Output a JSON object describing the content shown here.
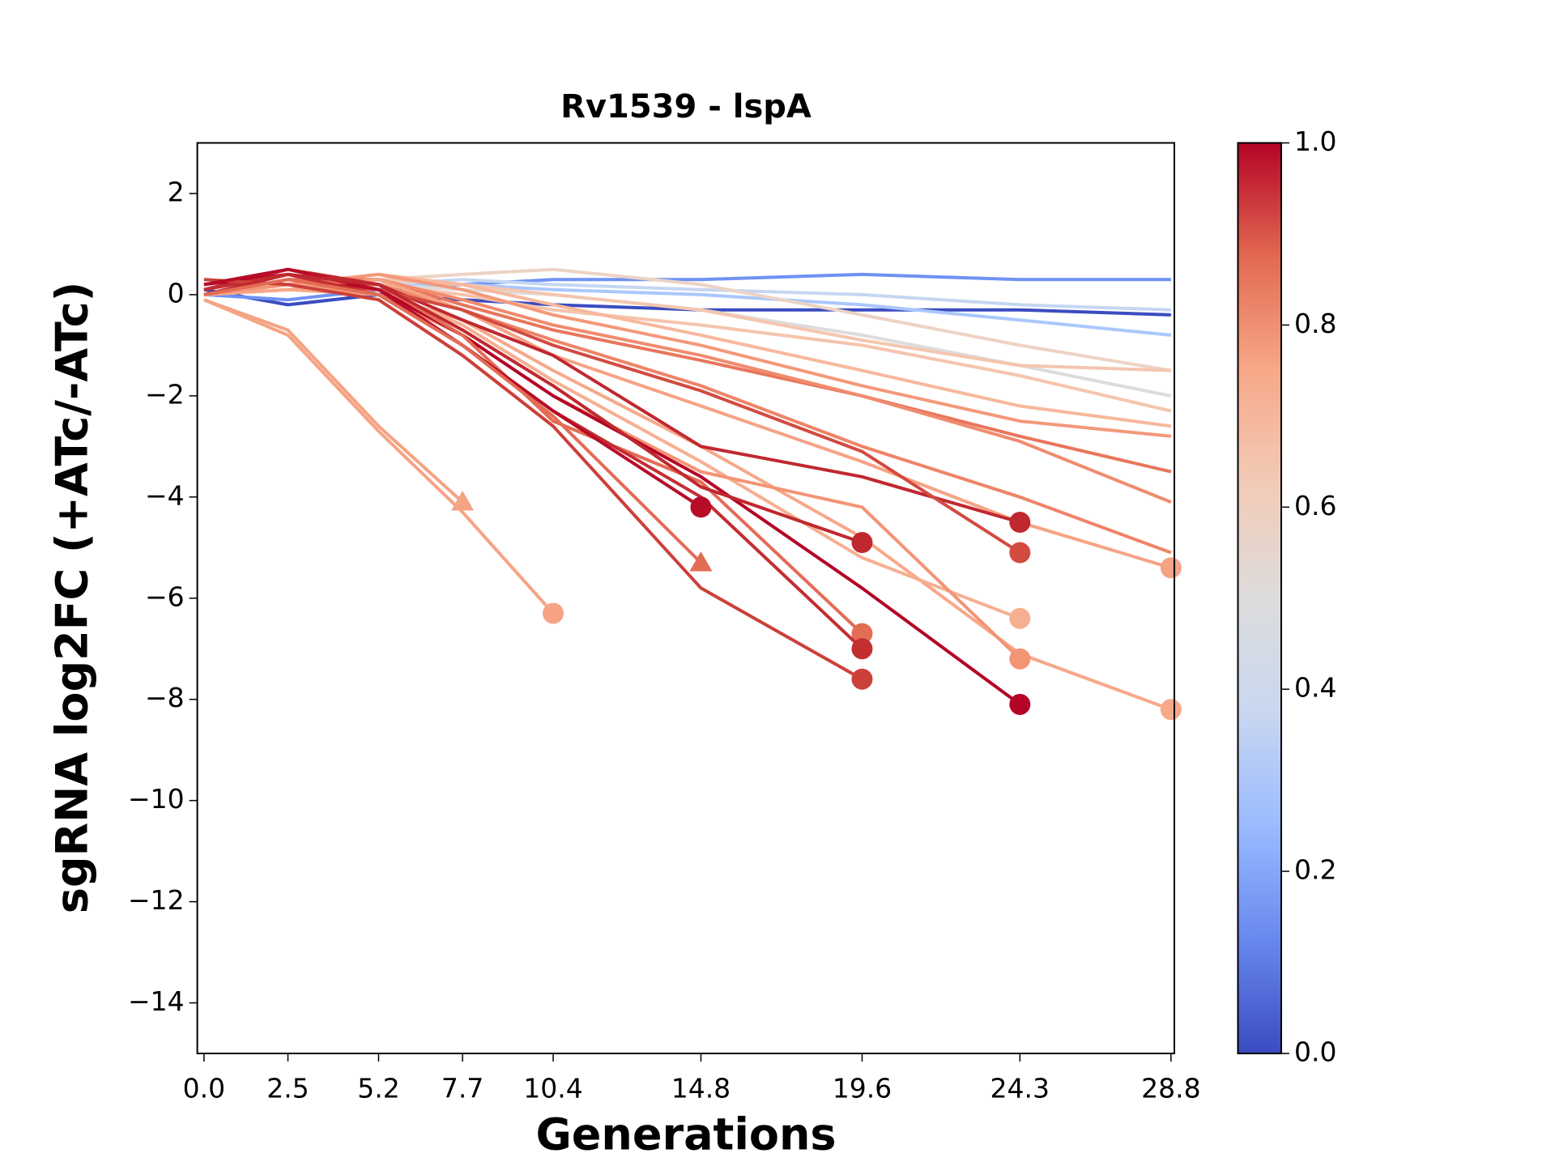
{
  "chart_data": {
    "type": "line",
    "title": "Rv1539 - lspA",
    "x_label": "Generations",
    "y_label": "sgRNA log2FC (+ATc/-ATc)",
    "x": [
      0,
      2.5,
      5.2,
      7.7,
      10.4,
      14.8,
      19.6,
      24.3,
      28.8
    ],
    "xlim": [
      -0.2,
      28.9
    ],
    "xticks": [
      {
        "value": 0,
        "label": "0.0"
      },
      2.5,
      5.2,
      7.7,
      10.4,
      14.8,
      19.6,
      24.3,
      28.8
    ],
    "ylim": [
      -15,
      3
    ],
    "yticks": [
      2,
      0,
      {
        "value": -2,
        "label": "−2"
      },
      {
        "value": -4,
        "label": "−4"
      },
      {
        "value": -6,
        "label": "−6"
      },
      {
        "value": -8,
        "label": "−8"
      },
      {
        "value": -10,
        "label": "−10"
      },
      {
        "value": -12,
        "label": "−12"
      },
      {
        "value": -14,
        "label": "−14"
      }
    ],
    "series": [
      {
        "color": "#3b4cc0",
        "values": [
          0.1,
          -0.2,
          0,
          -0.1,
          -0.2,
          -0.3,
          -0.3,
          -0.3,
          -0.4
        ]
      },
      {
        "color": "#6f92f3",
        "values": [
          0,
          -0.1,
          0.1,
          0.2,
          0.3,
          0.3,
          0.4,
          0.3,
          0.3
        ]
      },
      {
        "color": "#aac7fd",
        "values": [
          0,
          0.1,
          0.2,
          0.2,
          0.1,
          0,
          -0.2,
          -0.5,
          -0.8
        ]
      },
      {
        "color": "#c5d6f2",
        "values": [
          0,
          0.1,
          0.2,
          0.3,
          0.2,
          0.1,
          0,
          -0.2,
          -0.3
        ]
      },
      {
        "color": "#dddcdc",
        "values": [
          0,
          0.1,
          0.2,
          0.1,
          0,
          -0.3,
          -0.8,
          -1.4,
          -2.0
        ]
      },
      {
        "color": "#ecd3c5",
        "values": [
          0,
          0.2,
          0.3,
          0.4,
          0.5,
          0.2,
          -0.4,
          -1,
          -1.5
        ]
      },
      {
        "color": "#f4c6af",
        "values": [
          0,
          0.1,
          0.3,
          0.2,
          0,
          -0.3,
          -0.9,
          -1.4,
          -1.5
        ]
      },
      {
        "color": "#f5c4ac",
        "values": [
          0,
          0.1,
          0.2,
          0,
          -0.3,
          -0.6,
          -1,
          -1.6,
          -2.3
        ]
      },
      {
        "color": "#f7b89c",
        "values": [
          0,
          0.2,
          0.4,
          0.2,
          -0.2,
          -0.8,
          -1.5,
          -2.2,
          -2.6
        ]
      },
      {
        "color": "#f4987a",
        "values": [
          0,
          0.2,
          0.4,
          0.1,
          -0.4,
          -1,
          -1.8,
          -2.5,
          -2.8
        ]
      },
      {
        "color": "#e8765c",
        "values": [
          0,
          0.3,
          0.3,
          -0.2,
          -0.7,
          -1.3,
          -2,
          -2.8,
          -3.5
        ]
      },
      {
        "color": "#f08b6e",
        "values": [
          0,
          0.2,
          0.3,
          -0.1,
          -0.6,
          -1.2,
          -2,
          -2.9,
          -4.1
        ]
      },
      {
        "color": "#ee8468",
        "values": [
          0,
          0.3,
          0.2,
          -0.3,
          -0.9,
          -1.8,
          -3,
          -4,
          -5.1
        ]
      },
      {
        "color": "#f6a385",
        "marker": "o",
        "values": [
          0,
          0.1,
          0.3,
          -0.3,
          -1.2,
          -2.2,
          -3.3,
          -4.5,
          -5.4
        ]
      },
      {
        "color": "#f7a889",
        "marker": "o",
        "values": [
          0,
          0.1,
          0,
          -0.5,
          -1.5,
          -3,
          -4.8,
          -7.1,
          -8.2
        ]
      },
      {
        "color": "#f7af91",
        "marker": "o",
        "values": [
          0,
          0.2,
          0.1,
          -0.6,
          -1.7,
          -3.3,
          -5.2,
          -6.4,
          null
        ]
      },
      {
        "color": "#f39475",
        "marker": "o",
        "values": [
          0,
          0.2,
          0,
          -0.8,
          -2,
          -3.5,
          -4.2,
          -7.2,
          null
        ]
      },
      {
        "color": "#c0282f",
        "marker": "o",
        "values": [
          0.1,
          0.5,
          0.2,
          -0.5,
          -1.2,
          -3,
          -3.6,
          -4.5,
          null
        ]
      },
      {
        "color": "#d24b40",
        "marker": "o",
        "values": [
          0,
          0.3,
          0.1,
          -0.3,
          -1,
          -1.9,
          -3.1,
          -5.1,
          null
        ]
      },
      {
        "color": "#b40426",
        "marker": "o",
        "values": [
          0.2,
          0.4,
          0.1,
          -0.8,
          -2,
          -3.6,
          -5.8,
          -8.1,
          null
        ]
      },
      {
        "color": "#e36c55",
        "marker": "o",
        "values": [
          0,
          0.3,
          0.2,
          -0.8,
          -2.5,
          -3.7,
          -6.7,
          null,
          null
        ]
      },
      {
        "color": "#c32e31",
        "marker": "o",
        "values": [
          0.1,
          0.4,
          0,
          -1,
          -2.3,
          -4,
          -7.0,
          null,
          null
        ]
      },
      {
        "color": "#cc403a",
        "marker": "o",
        "values": [
          0.3,
          0.2,
          -0.1,
          -1.2,
          -2.6,
          -5.8,
          -7.6,
          null,
          null
        ]
      },
      {
        "color": "#b70d28",
        "marker": "o",
        "values": [
          0.2,
          0.5,
          0.1,
          -1,
          -2.3,
          -4.2,
          null,
          null,
          null
        ]
      },
      {
        "color": "#c0282f",
        "marker": "o",
        "values": [
          0,
          0.4,
          0.2,
          -0.7,
          -1.8,
          -3.8,
          -4.9,
          null,
          null
        ]
      },
      {
        "color": "#e36c55",
        "marker": "^",
        "values": [
          0,
          0.3,
          0,
          -1,
          -2.4,
          -5.3,
          null,
          null,
          null
        ]
      },
      {
        "color": "#f4a383",
        "marker": "^",
        "values": [
          -0.1,
          -0.7,
          -2.6,
          -4.1,
          null,
          null,
          null,
          null,
          null
        ]
      },
      {
        "color": "#f6a385",
        "marker": "o",
        "values": [
          -0.1,
          -0.8,
          -2.7,
          -4.3,
          -6.3,
          null,
          null,
          null,
          null
        ]
      }
    ],
    "colorbar": {
      "lim": [
        0,
        1
      ],
      "ticks": [
        {
          "value": 0,
          "label": "0.0"
        },
        0.2,
        0.4,
        0.6,
        0.8,
        {
          "value": 1,
          "label": "1.0"
        }
      ],
      "colors": [
        "#3b4cc0",
        "#6788ee",
        "#9abbff",
        "#c9d7f0",
        "#dddcdc",
        "#f2cbb7",
        "#f7a889",
        "#e26952",
        "#b40426"
      ]
    }
  }
}
